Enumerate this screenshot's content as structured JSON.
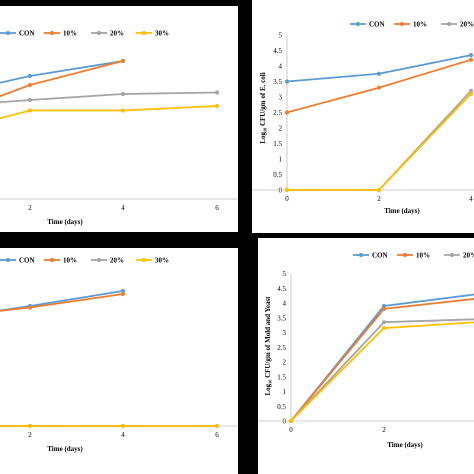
{
  "colors": {
    "CON": "#5b9bd5",
    "10%": "#ed7d31",
    "20%": "#a5a5a5",
    "30%": "#ffc000"
  },
  "chart_data": [
    {
      "id": "tl",
      "type": "line",
      "x": [
        0,
        2,
        4,
        6
      ],
      "series": [
        {
          "name": "CON",
          "values": [
            4.2,
            4.5,
            5.0,
            null
          ]
        },
        {
          "name": "10%",
          "values": [
            3.7,
            4.2,
            5.0,
            null
          ]
        },
        {
          "name": "20%",
          "values": [
            3.6,
            3.7,
            3.9,
            3.95
          ]
        },
        {
          "name": "30%",
          "values": [
            3.0,
            3.35,
            3.35,
            3.5
          ]
        }
      ],
      "xlabel": "Time (days)",
      "ylabel": "",
      "xtick_labels": [
        "2",
        "4",
        "6"
      ],
      "ytick_labels": [],
      "legend": [
        "CON",
        "10%",
        "20%",
        "30%"
      ]
    },
    {
      "id": "tr",
      "type": "line",
      "x": [
        0,
        2,
        4
      ],
      "series": [
        {
          "name": "CON",
          "values": [
            3.5,
            3.75,
            4.35
          ]
        },
        {
          "name": "10%",
          "values": [
            2.5,
            3.3,
            4.2
          ]
        },
        {
          "name": "20%",
          "values": [
            0,
            0,
            3.2
          ]
        },
        {
          "name": "30%",
          "values": [
            0,
            0,
            3.1
          ]
        }
      ],
      "xlabel": "Time (days)",
      "ylabel": "Log₁₀ CFU/gm of E. coli",
      "xtick_labels": [
        "0",
        "2",
        "4"
      ],
      "ytick_labels": [
        "0",
        "0.5",
        "1",
        "1.5",
        "2",
        "2.5",
        "3",
        "3.5",
        "4",
        "4.5",
        "5"
      ],
      "ylim": [
        0,
        5
      ],
      "legend": [
        "CON",
        "10%",
        "20%",
        "30%"
      ]
    },
    {
      "id": "bl",
      "type": "line",
      "x": [
        0,
        2,
        4,
        6
      ],
      "series": [
        {
          "name": "CON",
          "values": [
            3.8,
            4.0,
            4.5,
            null
          ]
        },
        {
          "name": "10%",
          "values": [
            3.8,
            3.95,
            4.4,
            null
          ]
        },
        {
          "name": "20%",
          "values": [
            0,
            0,
            0,
            0
          ]
        },
        {
          "name": "30%",
          "values": [
            0,
            0,
            0,
            0
          ]
        }
      ],
      "xlabel": "Time (days)",
      "ylabel": "",
      "xtick_labels": [
        "2",
        "4",
        "6"
      ],
      "ytick_labels": [],
      "legend": [
        "CON",
        "10%",
        "20%",
        "30%"
      ]
    },
    {
      "id": "br",
      "type": "line",
      "x": [
        0,
        2,
        4
      ],
      "series": [
        {
          "name": "CON",
          "values": [
            0,
            3.9,
            4.3
          ]
        },
        {
          "name": "10%",
          "values": [
            0,
            3.8,
            4.15
          ]
        },
        {
          "name": "20%",
          "values": [
            0,
            3.35,
            3.45
          ]
        },
        {
          "name": "30%",
          "values": [
            0,
            3.15,
            3.35
          ]
        }
      ],
      "xlabel": "Time (days)",
      "ylabel": "Log₁₀ CFU/gm of Mold and Yeast",
      "xtick_labels": [
        "0",
        "2"
      ],
      "ytick_labels": [
        "0",
        "0.5",
        "1",
        "1.5",
        "2",
        "2.5",
        "3",
        "3.5",
        "4",
        "4.5",
        "5"
      ],
      "ylim": [
        0,
        5
      ],
      "legend": [
        "CON",
        "10%",
        "20%",
        "30%"
      ]
    }
  ]
}
